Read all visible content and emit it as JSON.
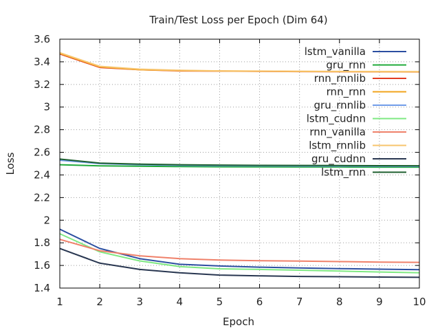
{
  "chart_data": {
    "type": "line",
    "title": "Train/Test Loss per Epoch (Dim 64)",
    "xlabel": "Epoch",
    "ylabel": "Loss",
    "xlim": [
      1,
      10
    ],
    "ylim": [
      1.4,
      3.6
    ],
    "xticks": [
      "1",
      "2",
      "3",
      "4",
      "5",
      "6",
      "7",
      "8",
      "9",
      "10"
    ],
    "yticks": [
      "1.4",
      "1.6",
      "1.8",
      "2",
      "2.2",
      "2.4",
      "2.6",
      "2.8",
      "3",
      "3.2",
      "3.4",
      "3.6"
    ],
    "grid": true,
    "legend_position": "top-right",
    "x": [
      1,
      2,
      3,
      4,
      5,
      6,
      7,
      8,
      9,
      10
    ],
    "series": [
      {
        "name": "lstm_vanilla",
        "color": "#2b4ea0",
        "values": [
          1.92,
          1.75,
          1.66,
          1.61,
          1.595,
          1.585,
          1.578,
          1.572,
          1.567,
          1.563
        ]
      },
      {
        "name": "gru_rnn",
        "color": "#1faa3a",
        "values": [
          2.49,
          2.48,
          2.477,
          2.474,
          2.472,
          2.471,
          2.47,
          2.47,
          2.469,
          2.469
        ]
      },
      {
        "name": "rnn_rnnlib",
        "color": "#e23c22",
        "values": [
          3.47,
          3.35,
          3.33,
          3.32,
          3.318,
          3.316,
          3.314,
          3.313,
          3.312,
          3.311
        ]
      },
      {
        "name": "rnn_rnn",
        "color": "#f2a41c",
        "values": [
          3.475,
          3.355,
          3.33,
          3.322,
          3.319,
          3.317,
          3.315,
          3.314,
          3.313,
          3.312
        ]
      },
      {
        "name": "gru_rnnlib",
        "color": "#6f9be8",
        "values": [
          2.53,
          2.5,
          2.49,
          2.485,
          2.482,
          2.48,
          2.479,
          2.478,
          2.477,
          2.476
        ]
      },
      {
        "name": "lstm_cudnn",
        "color": "#7ee882",
        "values": [
          1.88,
          1.72,
          1.64,
          1.59,
          1.57,
          1.565,
          1.558,
          1.55,
          1.542,
          1.535
        ]
      },
      {
        "name": "rnn_vanilla",
        "color": "#ef8069",
        "values": [
          1.83,
          1.73,
          1.685,
          1.66,
          1.648,
          1.642,
          1.638,
          1.634,
          1.63,
          1.627
        ]
      },
      {
        "name": "lstm_rnnlib",
        "color": "#f7c46c",
        "values": [
          3.48,
          3.36,
          3.335,
          3.325,
          3.32,
          3.318,
          3.316,
          3.315,
          3.314,
          3.313
        ]
      },
      {
        "name": "gru_cudnn",
        "color": "#283650",
        "values": [
          1.75,
          1.62,
          1.565,
          1.535,
          1.515,
          1.508,
          1.503,
          1.5,
          1.497,
          1.495
        ]
      },
      {
        "name": "lstm_rnn",
        "color": "#1d5f2e",
        "values": [
          2.54,
          2.505,
          2.495,
          2.49,
          2.487,
          2.485,
          2.484,
          2.483,
          2.482,
          2.481
        ]
      }
    ]
  }
}
